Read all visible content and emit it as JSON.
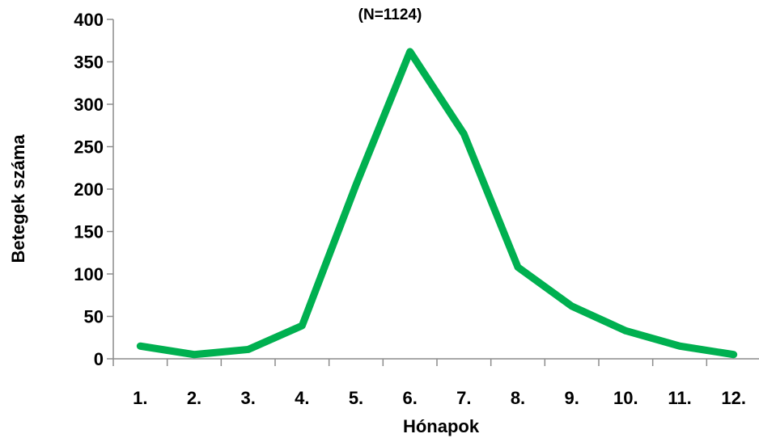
{
  "chart_data": {
    "type": "line",
    "title": "(N=1124)",
    "xlabel": "Hónapok",
    "ylabel": "Betegek száma",
    "categories": [
      "1.",
      "2.",
      "3.",
      "4.",
      "5.",
      "6.",
      "7.",
      "8.",
      "9.",
      "10.",
      "11.",
      "12."
    ],
    "series": [
      {
        "values": [
          15,
          5,
          11,
          39,
          205,
          362,
          265,
          108,
          62,
          33,
          15,
          5
        ]
      }
    ],
    "ylim": [
      0,
      400
    ],
    "yticks": [
      0,
      50,
      100,
      150,
      200,
      250,
      300,
      350,
      400
    ],
    "ytick_labels": [
      "0",
      "50",
      "100",
      "150",
      "200",
      "250",
      "300",
      "350",
      "400"
    ],
    "grid": false,
    "legend": "none",
    "line_color": "#00b050"
  }
}
